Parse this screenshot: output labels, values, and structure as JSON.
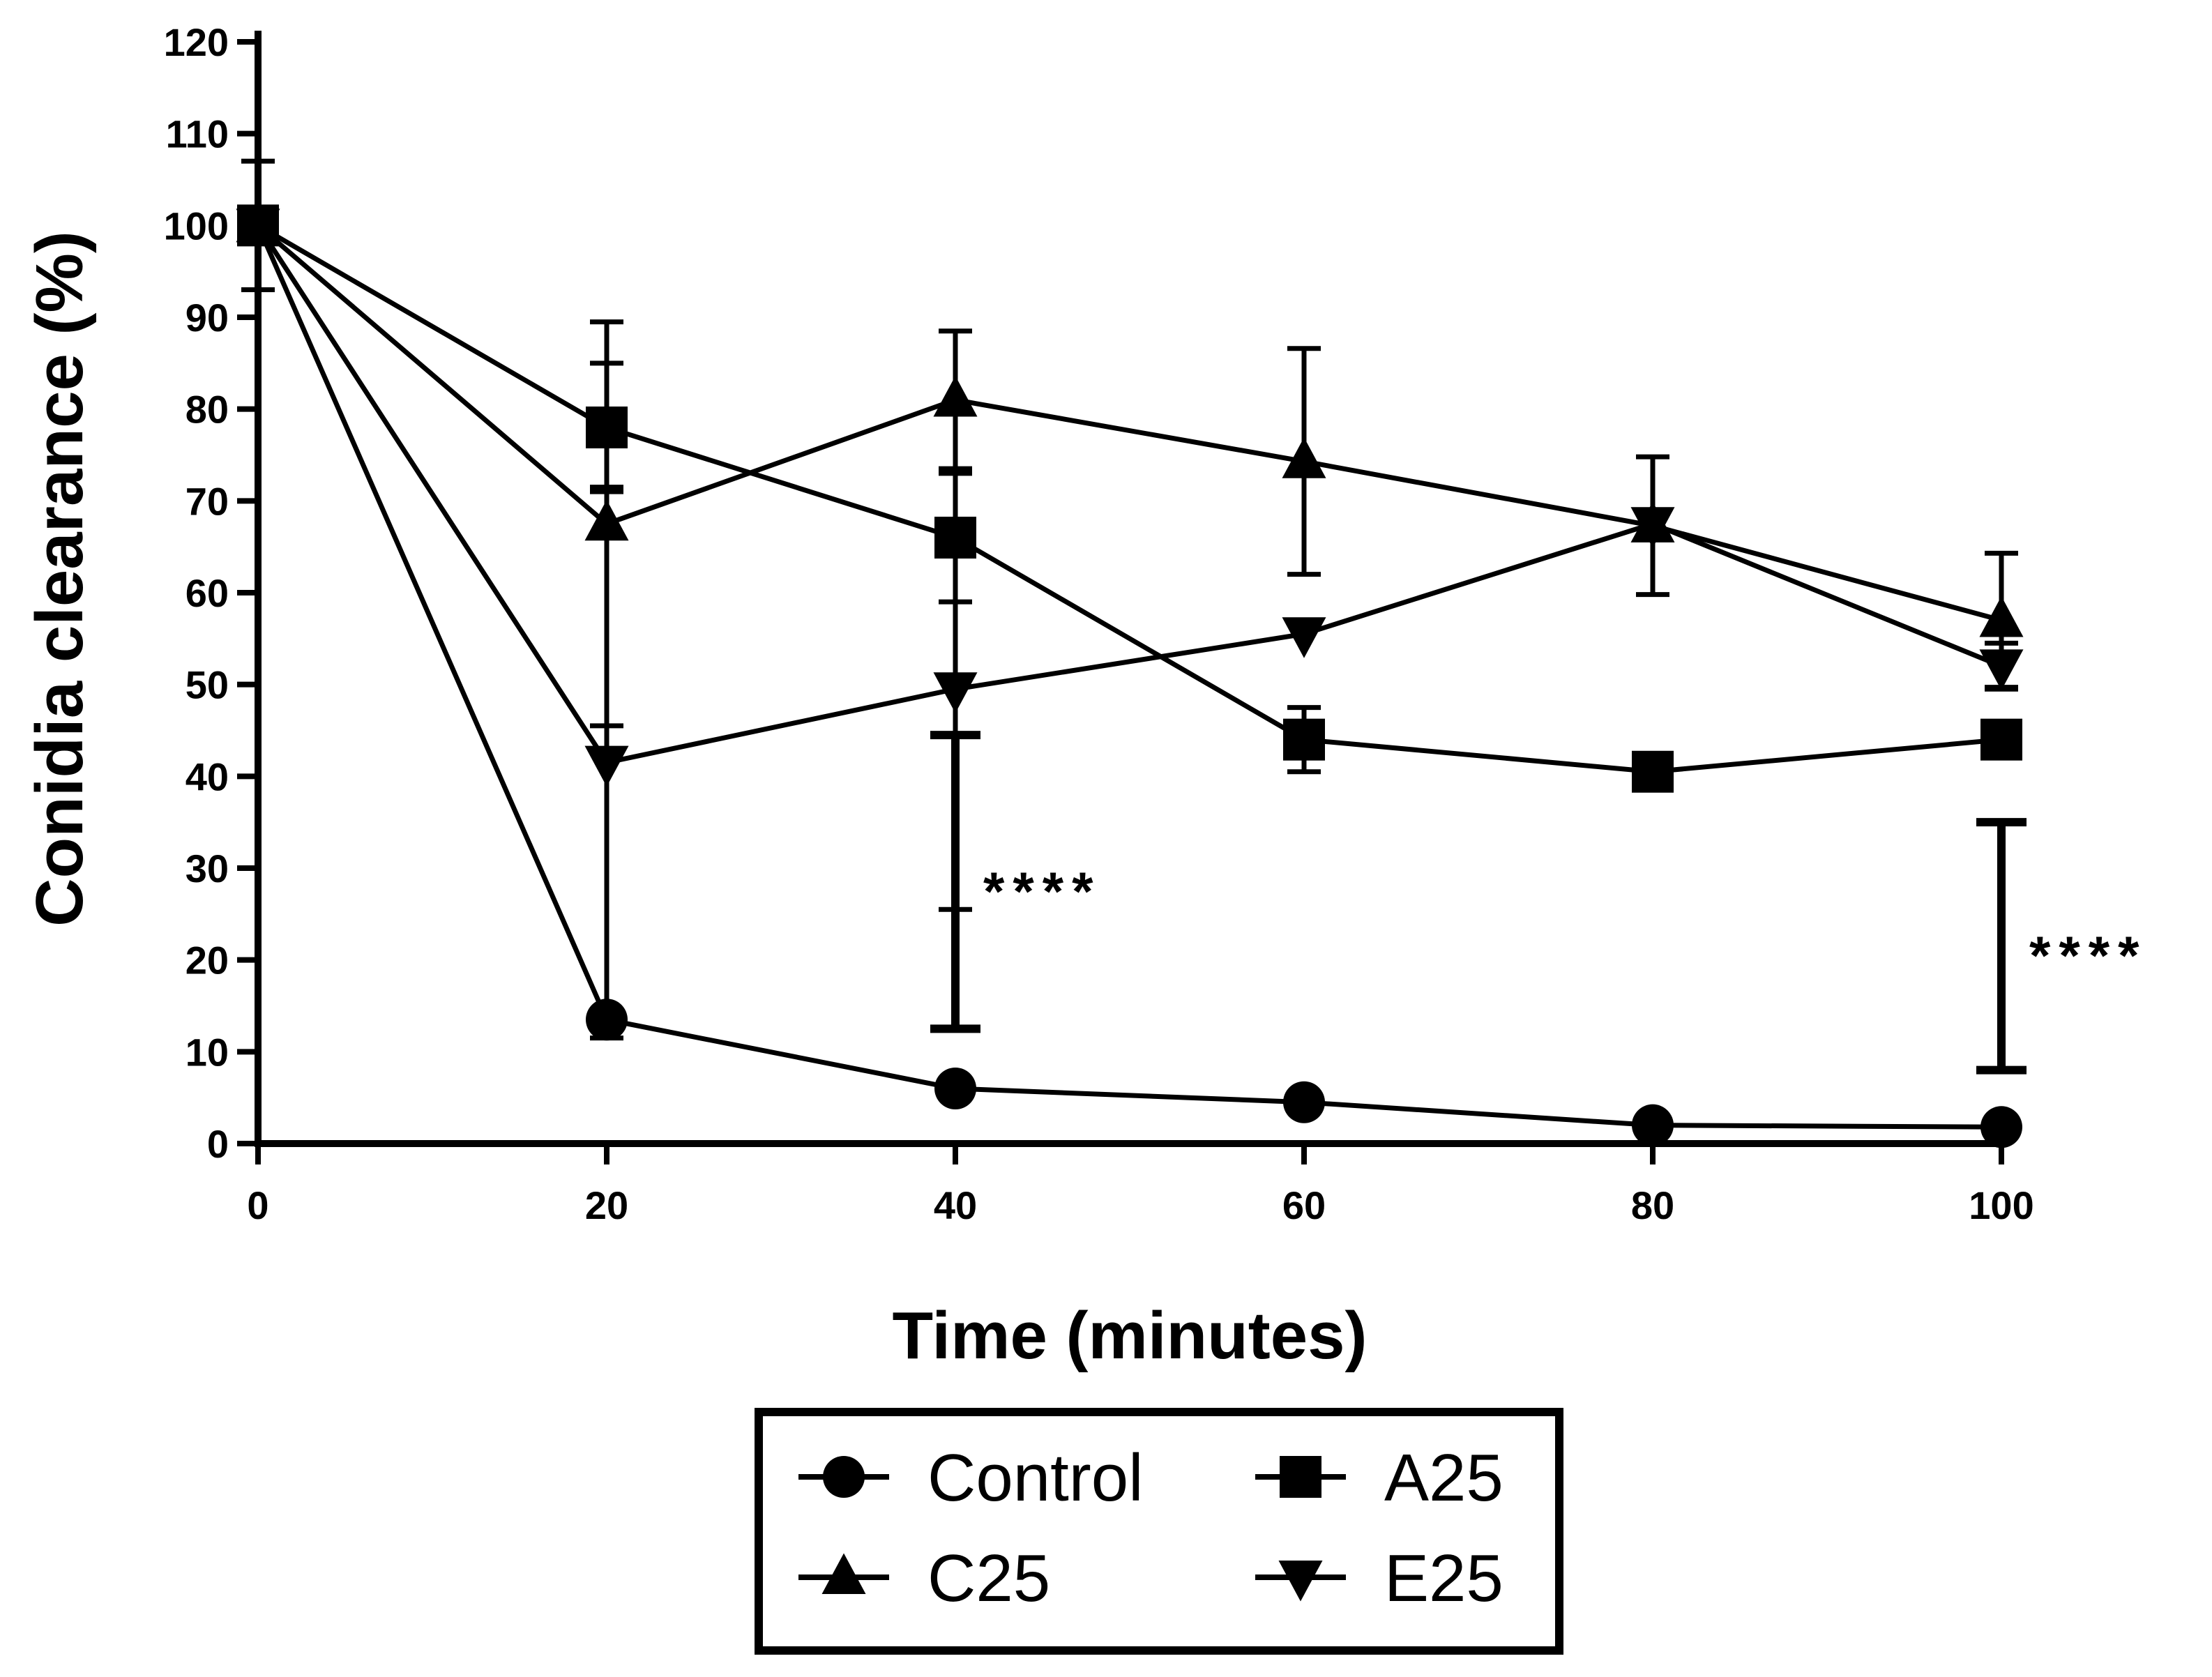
{
  "chart_data": {
    "type": "line",
    "title": "",
    "xlabel": "Time (minutes)",
    "ylabel": "Conidia clearance (%)",
    "xlim": [
      0,
      100
    ],
    "ylim": [
      0,
      120
    ],
    "x_ticks": [
      0,
      20,
      40,
      60,
      80,
      100
    ],
    "y_ticks": [
      0,
      10,
      20,
      30,
      40,
      50,
      60,
      70,
      80,
      90,
      100,
      110,
      120
    ],
    "x_tick_labels": [
      "0",
      "20",
      "40",
      "60",
      "80",
      "100"
    ],
    "y_tick_labels": [
      "0",
      "10",
      "20",
      "30",
      "40",
      "50",
      "60",
      "70",
      "80",
      "90",
      "100",
      "110",
      "120"
    ],
    "x": [
      0,
      20,
      40,
      60,
      80,
      100
    ],
    "series": [
      {
        "name": "Control",
        "marker": "circle",
        "values": [
          100,
          13.5,
          6,
          4.5,
          2,
          1.8
        ],
        "error": [
          7,
          0,
          0,
          0,
          0,
          0
        ]
      },
      {
        "name": "A25",
        "marker": "square",
        "values": [
          100,
          78,
          66,
          44,
          40.5,
          44
        ],
        "error": [
          0,
          7,
          7,
          3.5,
          0,
          0
        ]
      },
      {
        "name": "C25",
        "marker": "triangle-up",
        "values": [
          100,
          67.5,
          81,
          74.3,
          67.3,
          57
        ],
        "error": [
          0,
          22,
          7.5,
          12.3,
          7.5,
          7.3
        ]
      },
      {
        "name": "E25",
        "marker": "triangle-down",
        "values": [
          100,
          41.5,
          49.5,
          55.5,
          67.5,
          52
        ],
        "error": [
          0,
          30,
          24,
          0,
          0,
          2.5
        ]
      }
    ],
    "significance": [
      {
        "x": 40,
        "y_low": 12.5,
        "y_high": 44.5,
        "label": "****"
      },
      {
        "x": 100,
        "y_low": 8,
        "y_high": 35,
        "label": "****"
      }
    ],
    "legend": {
      "placement": "bottom-center",
      "entries": [
        "Control",
        "A25",
        "C25",
        "E25"
      ]
    },
    "grid": false
  }
}
